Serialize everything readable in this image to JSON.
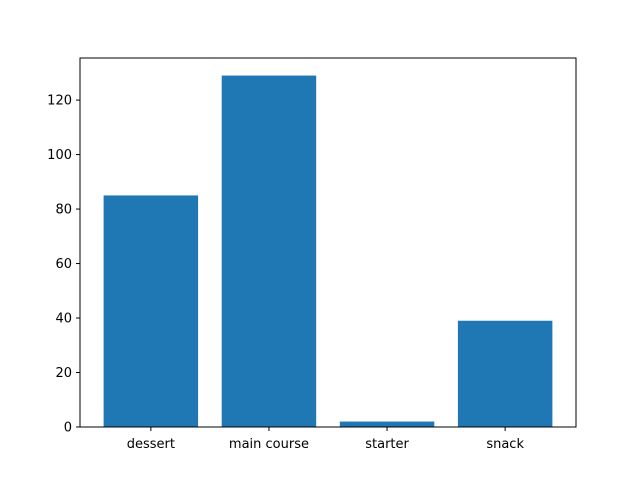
{
  "chart_data": {
    "type": "bar",
    "title": "",
    "xlabel": "",
    "ylabel": "",
    "categories": [
      "dessert",
      "main course",
      "starter",
      "snack"
    ],
    "values": [
      85,
      129,
      2,
      39
    ],
    "ylim": [
      0,
      135.45
    ],
    "y_ticks": [
      0,
      20,
      40,
      60,
      80,
      100,
      120
    ],
    "bar_color": "#1f77b4",
    "grid": false,
    "legend": "none"
  }
}
